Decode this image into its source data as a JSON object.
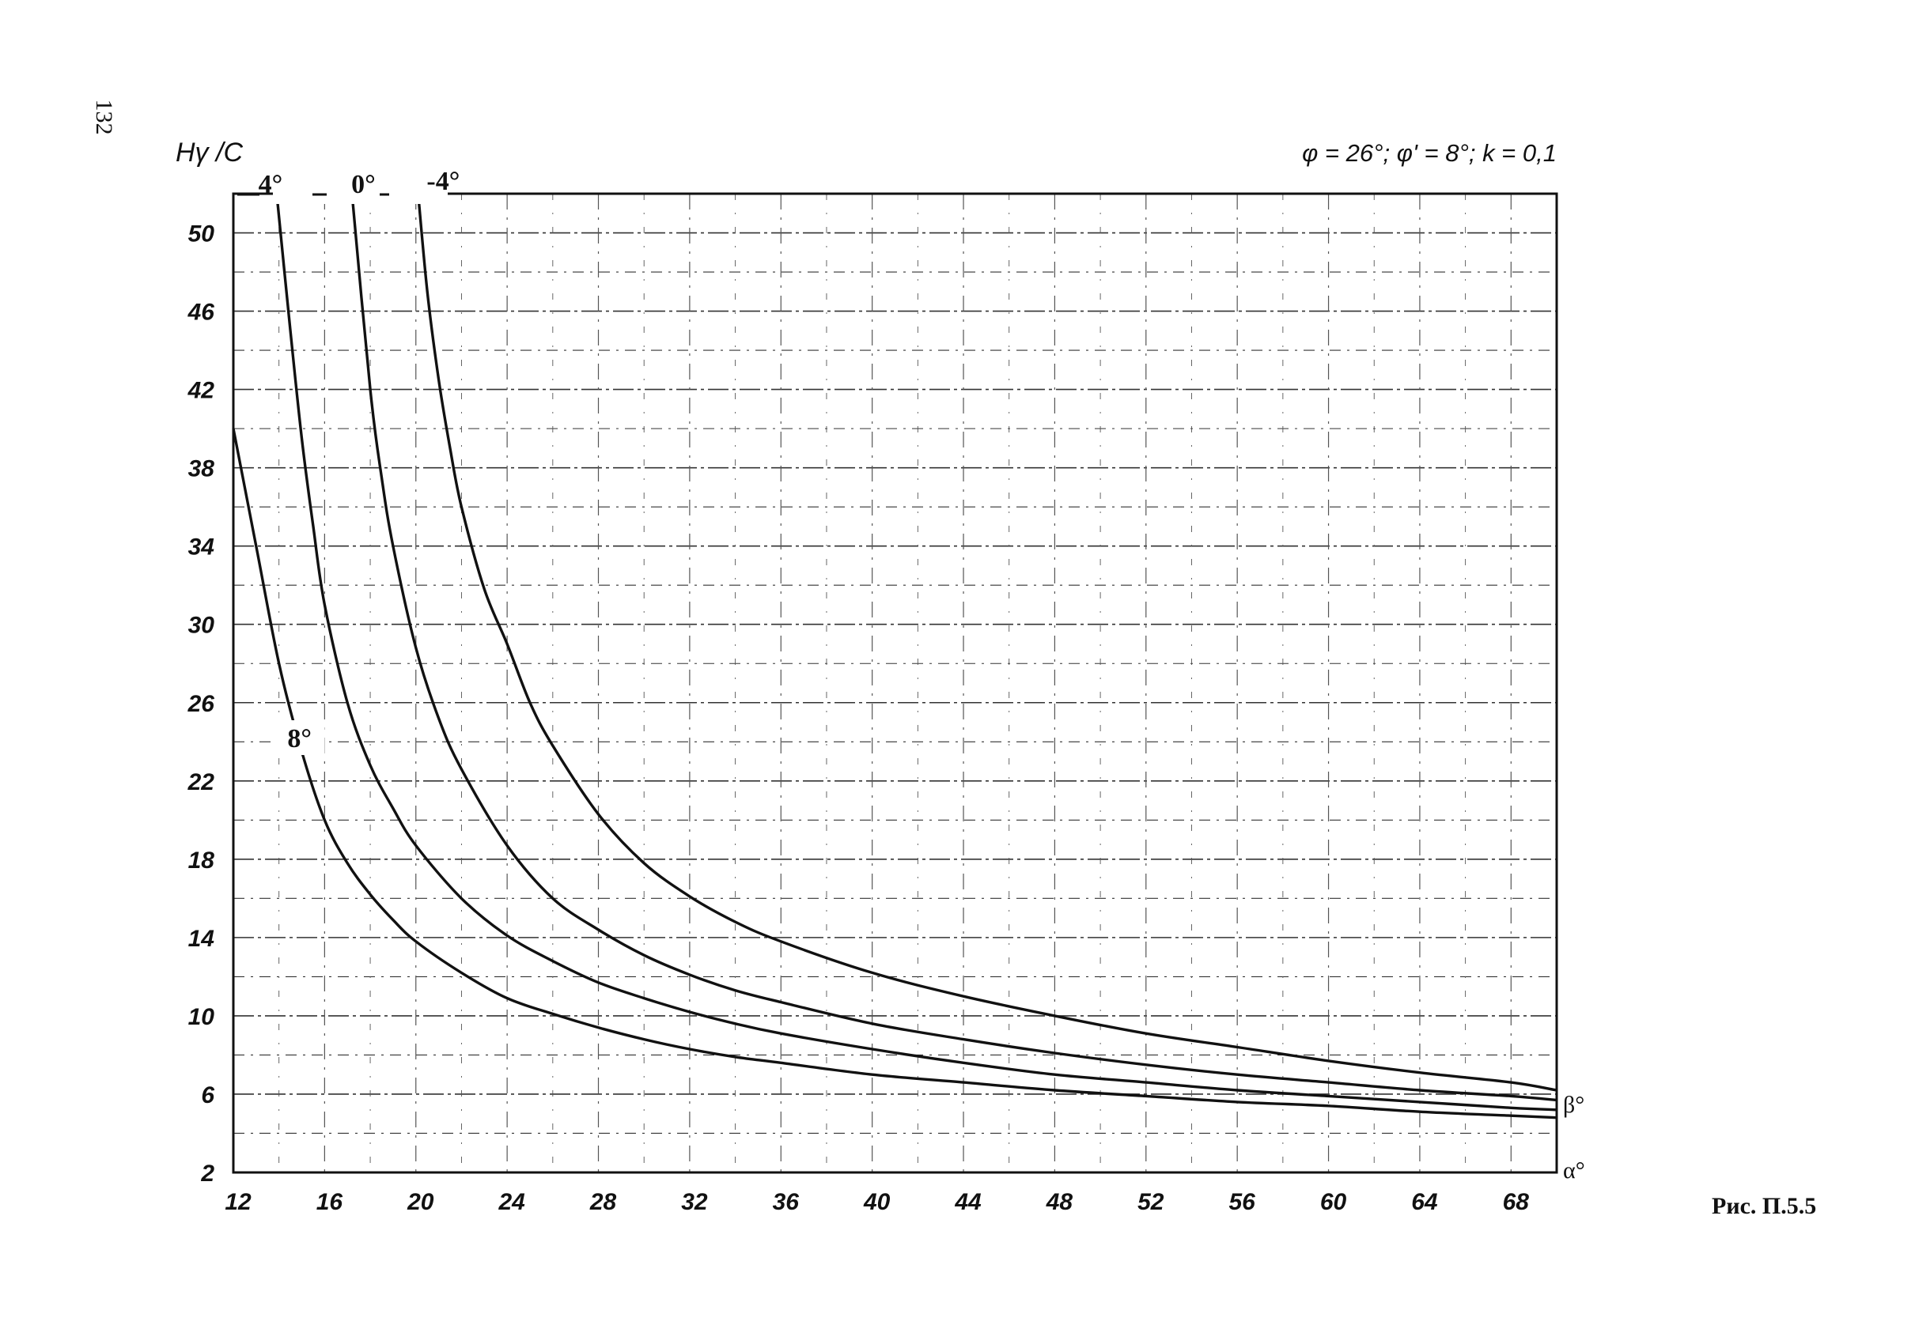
{
  "page_number": "132",
  "caption": "Рис. П.5.5",
  "chart_data": {
    "type": "line",
    "title": "φ  =  26°; φ'  =  8°; k  =  0,1",
    "ylabel": "Hγ /C",
    "x_end_label": "α°",
    "y_end_label": "β°",
    "xlim": [
      12,
      70
    ],
    "ylim": [
      2,
      52
    ],
    "xticks": [
      12,
      16,
      20,
      24,
      28,
      32,
      36,
      40,
      44,
      48,
      52,
      56,
      60,
      64,
      68
    ],
    "yticks": [
      2,
      6,
      10,
      14,
      18,
      22,
      26,
      30,
      34,
      38,
      42,
      46,
      50
    ],
    "grid": true,
    "series": [
      {
        "name": "8°",
        "x": [
          12,
          13,
          14,
          15,
          16,
          17,
          18,
          19,
          20,
          22,
          24,
          26,
          28,
          30,
          32,
          34,
          36,
          40,
          44,
          48,
          52,
          56,
          60,
          64,
          68,
          70
        ],
        "y": [
          40,
          34,
          28,
          23.5,
          20,
          17.8,
          16.2,
          14.9,
          13.8,
          12.2,
          10.9,
          10.1,
          9.4,
          8.8,
          8.3,
          7.9,
          7.6,
          7.0,
          6.6,
          6.2,
          5.9,
          5.6,
          5.4,
          5.1,
          4.9,
          4.8
        ]
      },
      {
        "name": "4°",
        "x": [
          13.9,
          14.5,
          15,
          15.5,
          16,
          17,
          18,
          19,
          20,
          22,
          24,
          26,
          28,
          30,
          32,
          34,
          36,
          40,
          44,
          48,
          52,
          56,
          60,
          64,
          68,
          70
        ],
        "y": [
          52,
          45,
          39.5,
          35,
          31,
          26,
          22.8,
          20.6,
          18.7,
          16,
          14.1,
          12.8,
          11.7,
          10.9,
          10.2,
          9.6,
          9.1,
          8.3,
          7.6,
          7.0,
          6.6,
          6.2,
          5.9,
          5.6,
          5.3,
          5.2
        ]
      },
      {
        "name": "0°",
        "x": [
          17.2,
          18,
          18.5,
          19,
          20,
          21,
          22,
          24,
          26,
          28,
          30,
          32,
          34,
          36,
          40,
          44,
          48,
          52,
          56,
          60,
          64,
          68,
          70
        ],
        "y": [
          52,
          42,
          37.5,
          34,
          28.8,
          25.2,
          22.6,
          18.7,
          16,
          14.4,
          13.1,
          12.1,
          11.3,
          10.7,
          9.6,
          8.8,
          8.1,
          7.5,
          7.0,
          6.6,
          6.2,
          5.9,
          5.7
        ]
      },
      {
        "name": "-4°",
        "x": [
          20.1,
          20.5,
          21,
          21.5,
          22,
          23,
          24,
          25,
          26,
          28,
          30,
          32,
          34,
          36,
          40,
          44,
          48,
          52,
          56,
          60,
          64,
          68,
          70
        ],
        "y": [
          52,
          47,
          42.5,
          39,
          36,
          31.8,
          29,
          26,
          23.8,
          20.3,
          17.8,
          16.1,
          14.8,
          13.8,
          12.2,
          11.0,
          10.0,
          9.1,
          8.4,
          7.7,
          7.1,
          6.6,
          6.2
        ]
      }
    ]
  }
}
